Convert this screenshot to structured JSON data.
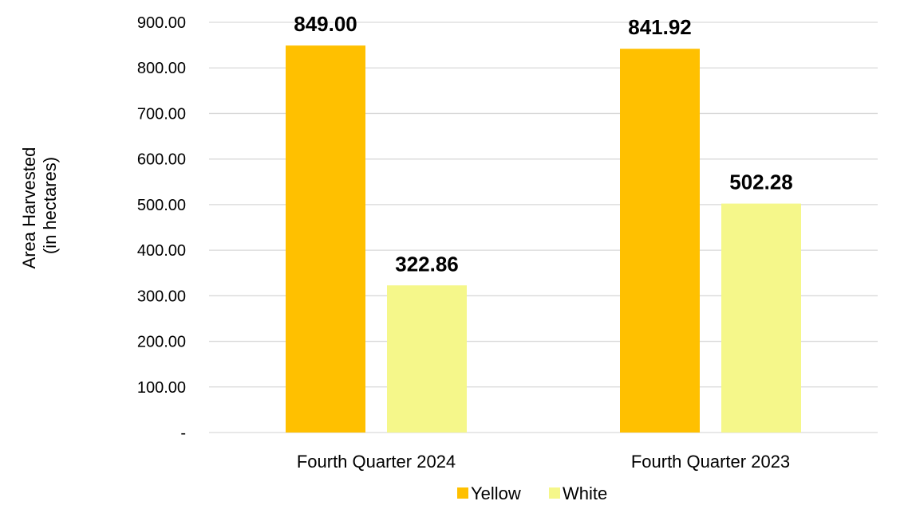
{
  "chart_data": {
    "type": "bar",
    "categories": [
      "Fourth Quarter 2024",
      "Fourth Quarter 2023"
    ],
    "series": [
      {
        "name": "Yellow",
        "values": [
          849.0,
          841.92
        ],
        "color": "#FFC000"
      },
      {
        "name": "White",
        "values": [
          322.86,
          502.28
        ],
        "color": "#F5F78A"
      }
    ],
    "data_labels": [
      [
        "849.00",
        "841.92"
      ],
      [
        "322.86",
        "502.28"
      ]
    ],
    "ylabel_lines": [
      "Area Harvested",
      "(in hectares)"
    ],
    "ylim": [
      0,
      900
    ],
    "yticks": [
      {
        "value": 0,
        "label": "-"
      },
      {
        "value": 100,
        "label": "100.00"
      },
      {
        "value": 200,
        "label": "200.00"
      },
      {
        "value": 300,
        "label": "300.00"
      },
      {
        "value": 400,
        "label": "400.00"
      },
      {
        "value": 500,
        "label": "500.00"
      },
      {
        "value": 600,
        "label": "600.00"
      },
      {
        "value": 700,
        "label": "700.00"
      },
      {
        "value": 800,
        "label": "800.00"
      },
      {
        "value": 900,
        "label": "900.00"
      }
    ],
    "grid": true,
    "gridline_color": "#D9D9D9",
    "legend_position": "bottom"
  }
}
